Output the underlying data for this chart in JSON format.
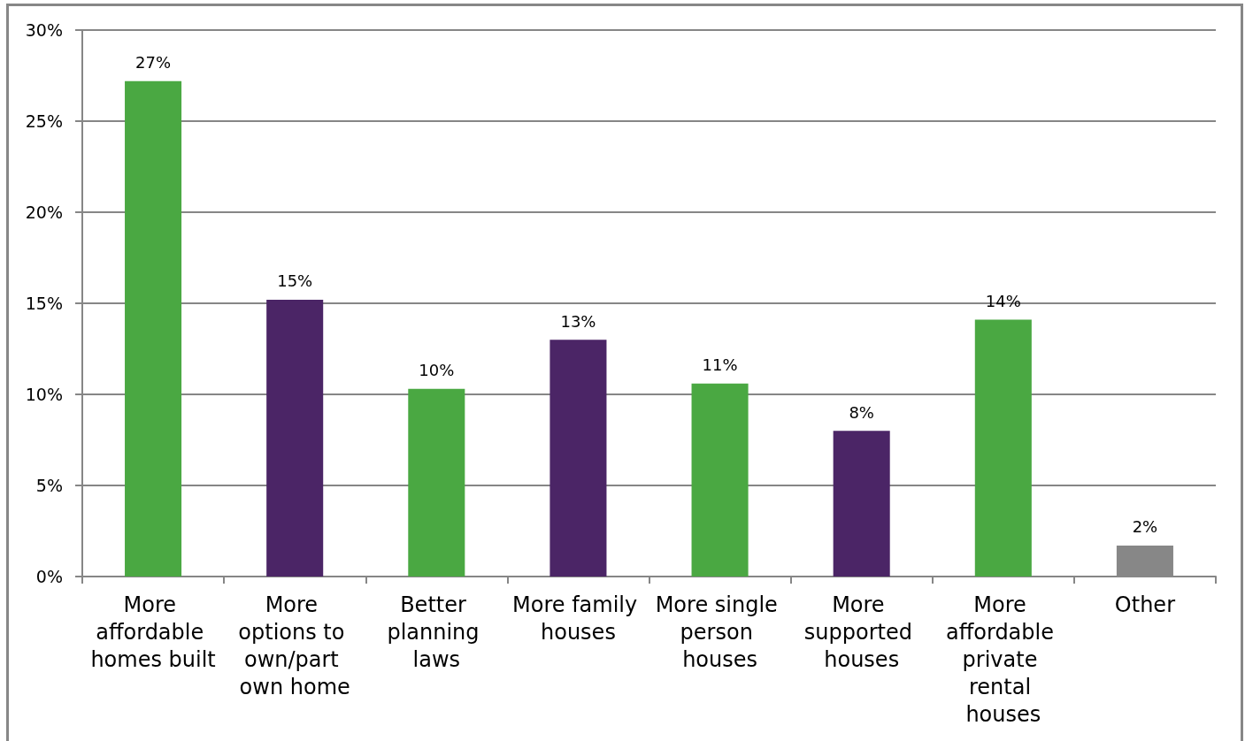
{
  "chart_data": {
    "type": "bar",
    "categories": [
      "More affordable homes built",
      "More options to own/part own home",
      "Better planning laws",
      "More family houses",
      "More single person houses",
      "More supported houses",
      "More affordable private rental houses",
      "Other"
    ],
    "values": [
      27.2,
      15.2,
      10.3,
      13.0,
      10.6,
      8.0,
      14.1,
      1.7
    ],
    "colors": [
      "#4aa842",
      "#4b2566",
      "#4aa842",
      "#4b2566",
      "#4aa842",
      "#4b2566",
      "#4aa842",
      "#878787"
    ],
    "value_labels": [
      "27%",
      "15%",
      "10%",
      "13%",
      "11%",
      "8%",
      "14%",
      "2%"
    ],
    "ylim": [
      0,
      30
    ],
    "yticks": [
      {
        "value": 0,
        "label": "0%"
      },
      {
        "value": 5,
        "label": "5%"
      },
      {
        "value": 10,
        "label": "10%"
      },
      {
        "value": 15,
        "label": "15%"
      },
      {
        "value": 20,
        "label": "20%"
      },
      {
        "value": 25,
        "label": "25%"
      },
      {
        "value": 30,
        "label": "30%"
      }
    ],
    "grid": "y"
  }
}
